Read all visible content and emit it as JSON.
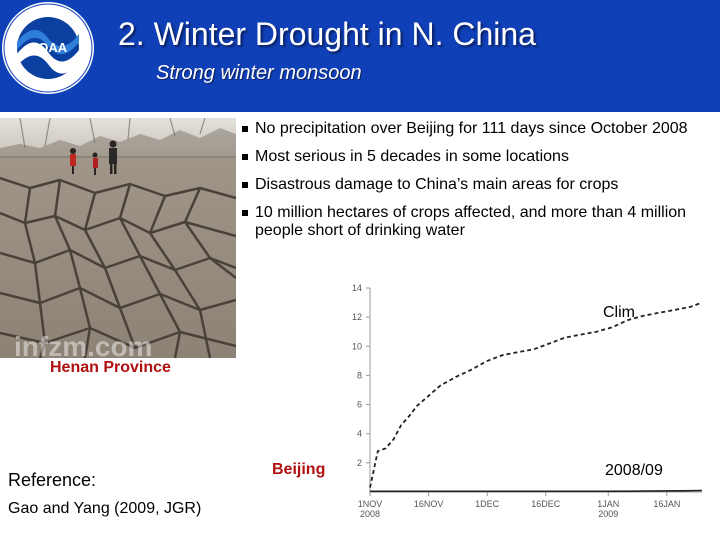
{
  "header": {
    "title": "2. Winter Drought in N. China",
    "subtitle": "Strong winter monsoon",
    "logo_text": "NOAA"
  },
  "photo": {
    "caption": "Henan Province",
    "watermark": "infzm.com"
  },
  "bullets": [
    "No precipitation over Beijing for 111 days since October 2008",
    "Most serious in 5 decades in some locations",
    "Disastrous damage to China’s main areas for crops",
    "10 million hectares of crops affected, and more than 4 million people short of drinking water"
  ],
  "reference": {
    "heading": "Reference:",
    "text": "Gao and Yang (2009, JGR)"
  },
  "chart_data": {
    "type": "line",
    "title": "",
    "station_label": "Beijing",
    "xlabel": "",
    "ylabel": "",
    "ylim": [
      0,
      14
    ],
    "xlim": [
      0,
      85
    ],
    "yticks": [
      2,
      4,
      6,
      8,
      10,
      12,
      14
    ],
    "xticks": [
      {
        "value": 0,
        "top": "1NOV",
        "bottom": "2008"
      },
      {
        "value": 15,
        "top": "16NOV",
        "bottom": ""
      },
      {
        "value": 30,
        "top": "1DEC",
        "bottom": ""
      },
      {
        "value": 45,
        "top": "16DEC",
        "bottom": ""
      },
      {
        "value": 61,
        "top": "1JAN",
        "bottom": "2009"
      },
      {
        "value": 76,
        "top": "16JAN",
        "bottom": ""
      }
    ],
    "series": [
      {
        "name": "Clim",
        "style": "dashed",
        "x": [
          0,
          2,
          4,
          6,
          8,
          10,
          12,
          15,
          18,
          22,
          26,
          30,
          34,
          38,
          42,
          46,
          50,
          54,
          58,
          62,
          66,
          70,
          74,
          78,
          82,
          85
        ],
        "y": [
          0.3,
          2.8,
          3.0,
          3.6,
          4.6,
          5.2,
          5.9,
          6.6,
          7.3,
          7.9,
          8.4,
          9.0,
          9.4,
          9.6,
          9.8,
          10.2,
          10.6,
          10.8,
          11.0,
          11.3,
          11.8,
          12.1,
          12.3,
          12.5,
          12.7,
          13.0
        ]
      },
      {
        "name": "2008/09",
        "style": "solid",
        "x": [
          0,
          10,
          20,
          30,
          40,
          50,
          60,
          70,
          80,
          85
        ],
        "y": [
          0.05,
          0.05,
          0.05,
          0.05,
          0.05,
          0.05,
          0.05,
          0.06,
          0.08,
          0.1
        ]
      }
    ]
  }
}
